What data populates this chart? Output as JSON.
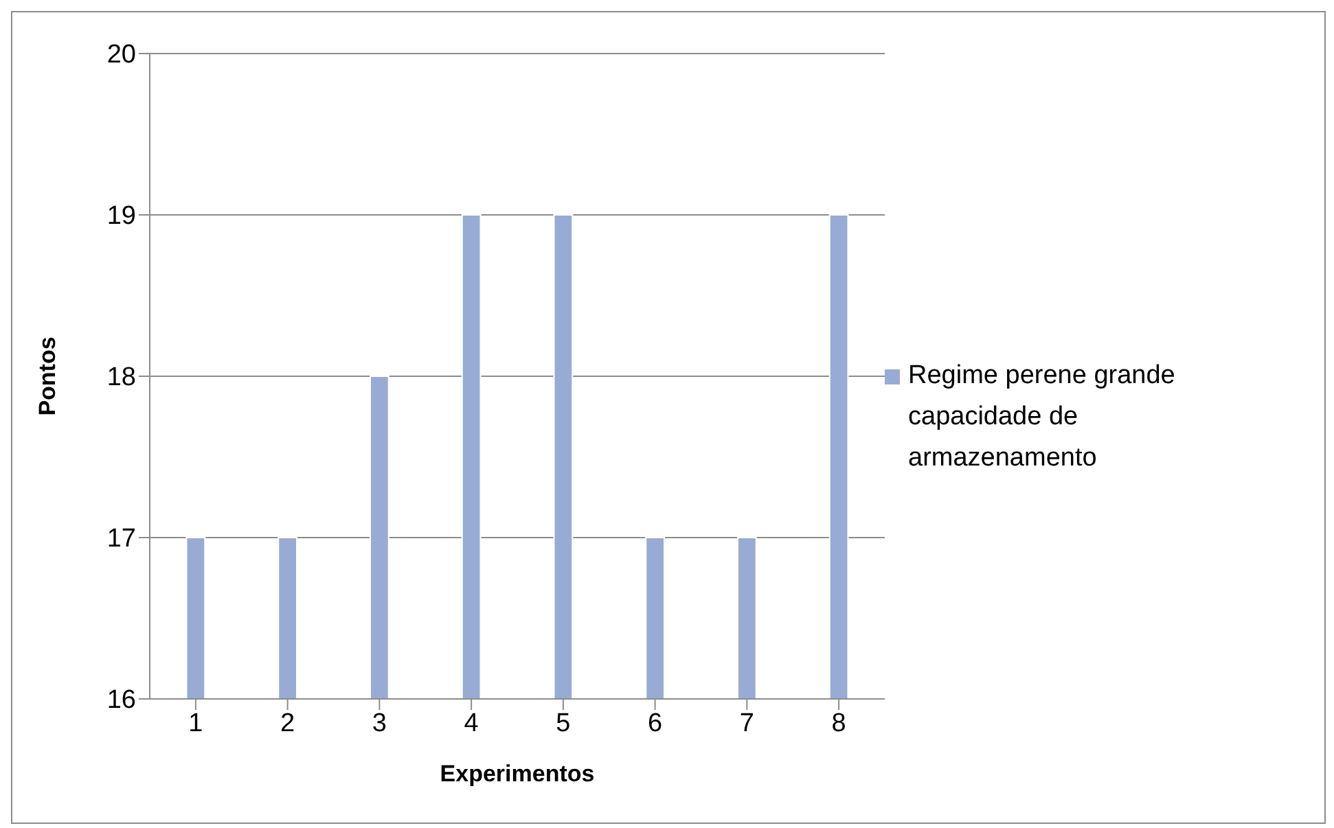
{
  "chart_data": {
    "type": "bar",
    "xlabel": "Experimentos",
    "ylabel": "Pontos",
    "categories": [
      "1",
      "2",
      "3",
      "4",
      "5",
      "6",
      "7",
      "8"
    ],
    "series": [
      {
        "name": "Regime perene grande capacidade de armazenamento",
        "color": "#97abd4",
        "values": [
          17,
          17,
          18,
          19,
          19,
          17,
          17,
          19
        ]
      }
    ],
    "ylim": [
      16,
      20
    ],
    "yticks": [
      16,
      17,
      18,
      19,
      20
    ],
    "grid": "y",
    "legend": "right"
  }
}
